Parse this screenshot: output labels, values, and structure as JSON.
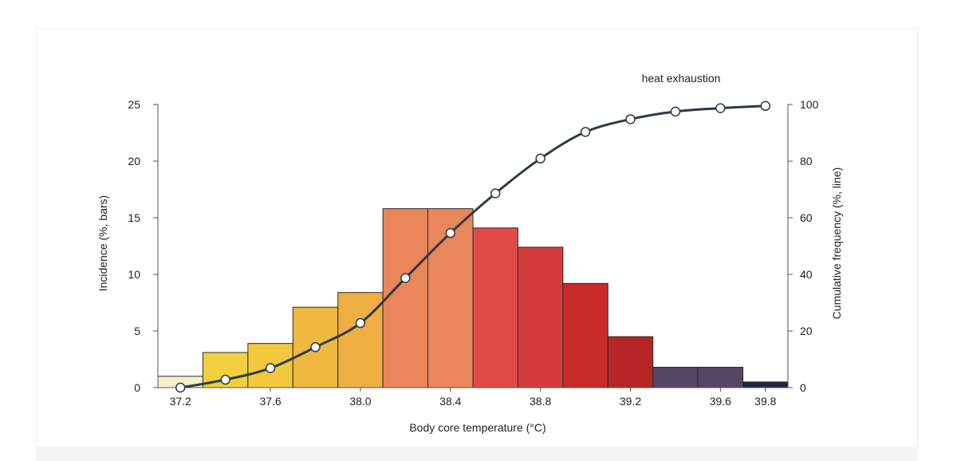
{
  "chart_data": {
    "type": "bar",
    "title": "",
    "annotation": "heat exhaustion",
    "xlabel": "Body core temperature (°C)",
    "ylabel_left": "Incidence (%, bars)",
    "ylabel_right": "Cumulative frequency (%, line)",
    "x_ticks": [
      "37.2",
      "37.6",
      "38.0",
      "38.4",
      "38.8",
      "39.2",
      "39.6",
      "39.8"
    ],
    "x_tick_values": [
      37.2,
      37.6,
      38.0,
      38.4,
      38.8,
      39.2,
      39.6,
      39.8
    ],
    "y_left_ticks": [
      "0",
      "5",
      "10",
      "15",
      "20",
      "25"
    ],
    "y_left_tick_values": [
      0,
      5,
      10,
      15,
      20,
      25
    ],
    "y_right_ticks": [
      "0",
      "20",
      "40",
      "60",
      "80",
      "100"
    ],
    "y_right_tick_values": [
      0,
      20,
      40,
      60,
      80,
      100
    ],
    "xlim": [
      37.1,
      39.9
    ],
    "ylim_left": [
      0,
      25
    ],
    "ylim_right": [
      0,
      100
    ],
    "bars": [
      {
        "x_start": 37.1,
        "x_end": 37.3,
        "value": 1.0,
        "color": "#f5eecd"
      },
      {
        "x_start": 37.3,
        "x_end": 37.5,
        "value": 3.1,
        "color": "#f2cf3e"
      },
      {
        "x_start": 37.5,
        "x_end": 37.7,
        "value": 3.9,
        "color": "#f1c83e"
      },
      {
        "x_start": 37.7,
        "x_end": 37.9,
        "value": 7.1,
        "color": "#efb840"
      },
      {
        "x_start": 37.9,
        "x_end": 38.1,
        "value": 8.4,
        "color": "#eeae42"
      },
      {
        "x_start": 38.1,
        "x_end": 38.3,
        "value": 15.8,
        "color": "#e9875a"
      },
      {
        "x_start": 38.3,
        "x_end": 38.5,
        "value": 15.8,
        "color": "#e9875a"
      },
      {
        "x_start": 38.5,
        "x_end": 38.7,
        "value": 14.1,
        "color": "#e04a46"
      },
      {
        "x_start": 38.7,
        "x_end": 38.9,
        "value": 12.4,
        "color": "#d63b3c"
      },
      {
        "x_start": 38.9,
        "x_end": 39.1,
        "value": 9.2,
        "color": "#c82a2a"
      },
      {
        "x_start": 39.1,
        "x_end": 39.3,
        "value": 4.5,
        "color": "#b62626"
      },
      {
        "x_start": 39.3,
        "x_end": 39.5,
        "value": 1.8,
        "color": "#574565"
      },
      {
        "x_start": 39.5,
        "x_end": 39.7,
        "value": 1.8,
        "color": "#574565"
      },
      {
        "x_start": 39.7,
        "x_end": 39.9,
        "value": 0.5,
        "color": "#1f2640"
      }
    ],
    "line": {
      "name": "Cumulative frequency",
      "x": [
        37.2,
        37.4,
        37.6,
        37.8,
        38.0,
        38.2,
        38.4,
        38.6,
        38.8,
        39.0,
        39.2,
        39.4,
        39.6,
        39.8
      ],
      "y": [
        0,
        2.8,
        6.9,
        14.3,
        22.8,
        38.7,
        54.6,
        68.6,
        80.9,
        90.3,
        94.8,
        97.5,
        98.7,
        99.5
      ],
      "color": "#2d3a44"
    },
    "grid": false,
    "legend": "none"
  }
}
